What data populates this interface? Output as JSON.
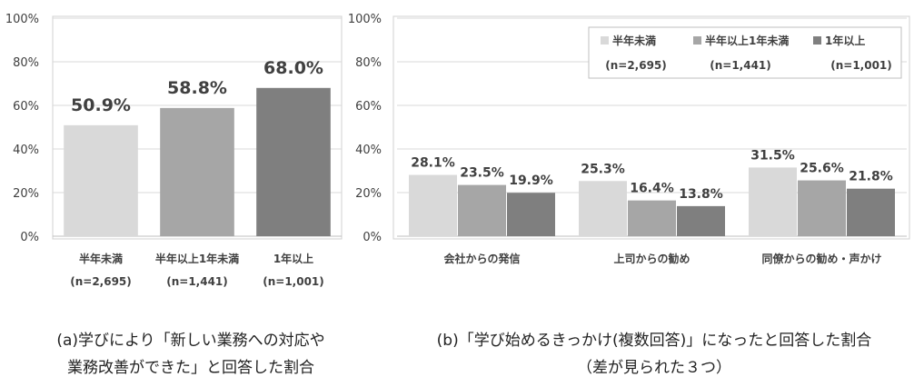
{
  "chart_data": [
    {
      "type": "bar",
      "categories": [
        {
          "line1": "半年未満",
          "line2": "(n=2,695)"
        },
        {
          "line1": "半年以上1年未満",
          "line2": "(n=1,441)"
        },
        {
          "line1": "1年以上",
          "line2": "(n=1,001)"
        }
      ],
      "values": [
        50.9,
        58.8,
        68.0
      ],
      "value_labels": [
        "50.9%",
        "58.8%",
        "68.0%"
      ],
      "colors": [
        "#d9d9d9",
        "#a6a6a6",
        "#7f7f7f"
      ],
      "ylim": [
        0,
        100
      ],
      "yticks": [
        "0%",
        "20%",
        "40%",
        "60%",
        "80%",
        "100%"
      ],
      "caption_line1": "(a)学びにより「新しい業務への対応や",
      "caption_line2": "業務改善ができた」と回答した割合"
    },
    {
      "type": "bar",
      "categories": [
        "会社からの発信",
        "上司からの勧め",
        "同僚からの勧め・声かけ"
      ],
      "series": [
        {
          "name": "半年未満",
          "n": "(n=2,695)",
          "color": "#d9d9d9",
          "values": [
            28.1,
            25.3,
            31.5
          ],
          "value_labels": [
            "28.1%",
            "25.3%",
            "31.5%"
          ]
        },
        {
          "name": "半年以上1年未満",
          "n": "(n=1,441)",
          "color": "#a6a6a6",
          "values": [
            23.5,
            16.4,
            25.6
          ],
          "value_labels": [
            "23.5%",
            "16.4%",
            "25.6%"
          ]
        },
        {
          "name": "1年以上",
          "n": "(n=1,001)",
          "color": "#7f7f7f",
          "values": [
            19.9,
            13.8,
            21.8
          ],
          "value_labels": [
            "19.9%",
            "13.8%",
            "21.8%"
          ]
        }
      ],
      "ylim": [
        0,
        100
      ],
      "yticks": [
        "0%",
        "20%",
        "40%",
        "60%",
        "80%",
        "100%"
      ],
      "legend_position": "top-right",
      "caption_line1": "(b)「学び始めるきっかけ(複数回答)」になったと回答した割合",
      "caption_line2": "（差が見られた３つ）"
    }
  ]
}
